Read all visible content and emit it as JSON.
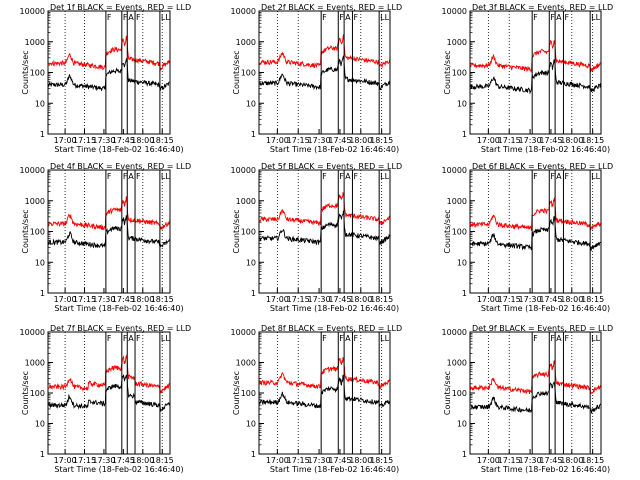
{
  "chart_data": [
    {
      "type": "line",
      "title": "Det 1f BLACK = Events, RED = LLD",
      "xlabel": "Start Time (18-Feb-02 16:46:40)",
      "ylabel": "Counts/sec",
      "yscale": "log",
      "ylim": [
        1,
        10000
      ],
      "xlim": [
        16.78,
        18.35
      ],
      "yticks": [
        "1",
        "10",
        "100",
        "1000",
        "10000"
      ],
      "xticks": [
        "17:00",
        "17:15",
        "17:30",
        "17:45",
        "18:00",
        "18:15"
      ],
      "event_base": 40,
      "lld_base": 200,
      "series": [
        {
          "name": "BLACK",
          "color": "#000000"
        },
        {
          "name": "RED",
          "color": "#ff0000"
        }
      ],
      "markers": [
        {
          "label": "F"
        },
        {
          "label": "F"
        },
        {
          "label": "A"
        },
        {
          "label": "F"
        },
        {
          "label": "LL"
        }
      ]
    },
    {
      "type": "line",
      "title": "Det 2f BLACK = Events, RED = LLD",
      "xlabel": "Start Time (18-Feb-02 16:46:40)",
      "ylabel": "Counts/sec",
      "yscale": "log",
      "ylim": [
        1,
        10000
      ],
      "xlim": [
        16.78,
        18.35
      ],
      "yticks": [
        "1",
        "10",
        "100",
        "1000",
        "10000"
      ],
      "xticks": [
        "17:00",
        "17:15",
        "17:30",
        "17:45",
        "18:00",
        "18:15"
      ],
      "event_base": 45,
      "lld_base": 220,
      "series": [
        {
          "name": "BLACK",
          "color": "#000000"
        },
        {
          "name": "RED",
          "color": "#ff0000"
        }
      ],
      "markers": [
        {
          "label": "F"
        },
        {
          "label": "F"
        },
        {
          "label": "A"
        },
        {
          "label": "F"
        },
        {
          "label": "LL"
        }
      ]
    },
    {
      "type": "line",
      "title": "Det 3f BLACK = Events, RED = LLD",
      "xlabel": "Start Time (18-Feb-02 16:46:40)",
      "ylabel": "Counts/sec",
      "yscale": "log",
      "ylim": [
        1,
        10000
      ],
      "xlim": [
        16.78,
        18.35
      ],
      "yticks": [
        "1",
        "10",
        "100",
        "1000",
        "10000"
      ],
      "xticks": [
        "17:00",
        "17:15",
        "17:30",
        "17:45",
        "18:00",
        "18:15"
      ],
      "event_base": 35,
      "lld_base": 170,
      "series": [
        {
          "name": "BLACK",
          "color": "#000000"
        },
        {
          "name": "RED",
          "color": "#ff0000"
        }
      ],
      "markers": [
        {
          "label": "F"
        },
        {
          "label": "F"
        },
        {
          "label": "A"
        },
        {
          "label": "F"
        },
        {
          "label": "LL"
        }
      ]
    },
    {
      "type": "line",
      "title": "Det 4f BLACK = Events, RED = LLD",
      "xlabel": "Start Time (18-Feb-02 16:46:40)",
      "ylabel": "Counts/sec",
      "yscale": "log",
      "ylim": [
        1,
        10000
      ],
      "xlim": [
        16.78,
        18.35
      ],
      "yticks": [
        "1",
        "10",
        "100",
        "1000",
        "10000"
      ],
      "xticks": [
        "17:00",
        "17:15",
        "17:30",
        "17:45",
        "18:00",
        "18:15"
      ],
      "event_base": 45,
      "lld_base": 180,
      "series": [
        {
          "name": "BLACK",
          "color": "#000000"
        },
        {
          "name": "RED",
          "color": "#ff0000"
        }
      ],
      "markers": [
        {
          "label": "F"
        },
        {
          "label": "F"
        },
        {
          "label": "A"
        },
        {
          "label": "F"
        },
        {
          "label": "LL"
        }
      ]
    },
    {
      "type": "line",
      "title": "Det 5f BLACK = Events, RED = LLD",
      "xlabel": "Start Time (18-Feb-02 16:46:40)",
      "ylabel": "Counts/sec",
      "yscale": "log",
      "ylim": [
        1,
        10000
      ],
      "xlim": [
        16.78,
        18.35
      ],
      "yticks": [
        "1",
        "10",
        "100",
        "1000",
        "10000"
      ],
      "xticks": [
        "17:00",
        "17:15",
        "17:30",
        "17:45",
        "18:00",
        "18:15"
      ],
      "event_base": 60,
      "lld_base": 250,
      "series": [
        {
          "name": "BLACK",
          "color": "#000000"
        },
        {
          "name": "RED",
          "color": "#ff0000"
        }
      ],
      "markers": [
        {
          "label": "F"
        },
        {
          "label": "F"
        },
        {
          "label": "A"
        },
        {
          "label": "F"
        },
        {
          "label": "LL"
        }
      ]
    },
    {
      "type": "line",
      "title": "Det 6f BLACK = Events, RED = LLD",
      "xlabel": "Start Time (18-Feb-02 16:46:40)",
      "ylabel": "Counts/sec",
      "yscale": "log",
      "ylim": [
        1,
        10000
      ],
      "xlim": [
        16.78,
        18.35
      ],
      "yticks": [
        "1",
        "10",
        "100",
        "1000",
        "10000"
      ],
      "xticks": [
        "17:00",
        "17:15",
        "17:30",
        "17:45",
        "18:00",
        "18:15"
      ],
      "event_base": 40,
      "lld_base": 170,
      "series": [
        {
          "name": "BLACK",
          "color": "#000000"
        },
        {
          "name": "RED",
          "color": "#ff0000"
        }
      ],
      "markers": [
        {
          "label": "F"
        },
        {
          "label": "F"
        },
        {
          "label": "A"
        },
        {
          "label": "F"
        },
        {
          "label": "LL"
        }
      ]
    },
    {
      "type": "line",
      "title": "Det 7f BLACK = Events, RED = LLD",
      "xlabel": "Start Time (18-Feb-02 16:46:40)",
      "ylabel": "Counts/sec",
      "yscale": "log",
      "ylim": [
        1,
        10000
      ],
      "xlim": [
        16.78,
        18.35
      ],
      "yticks": [
        "1",
        "10",
        "100",
        "1000",
        "10000"
      ],
      "xticks": [
        "17:00",
        "17:15",
        "17:30",
        "17:45",
        "18:00",
        "18:15"
      ],
      "event_base": 40,
      "lld_base": 160,
      "series": [
        {
          "name": "BLACK",
          "color": "#000000"
        },
        {
          "name": "RED",
          "color": "#ff0000"
        }
      ],
      "markers": [
        {
          "label": "F"
        },
        {
          "label": "F"
        },
        {
          "label": "A"
        },
        {
          "label": "F"
        },
        {
          "label": "LL"
        }
      ]
    },
    {
      "type": "line",
      "title": "Det 8f BLACK = Events, RED = LLD",
      "xlabel": "Start Time (18-Feb-02 16:46:40)",
      "ylabel": "Counts/sec",
      "yscale": "log",
      "ylim": [
        1,
        10000
      ],
      "xlim": [
        16.78,
        18.35
      ],
      "yticks": [
        "1",
        "10",
        "100",
        "1000",
        "10000"
      ],
      "xticks": [
        "17:00",
        "17:15",
        "17:30",
        "17:45",
        "18:00",
        "18:15"
      ],
      "event_base": 50,
      "lld_base": 220,
      "series": [
        {
          "name": "BLACK",
          "color": "#000000"
        },
        {
          "name": "RED",
          "color": "#ff0000"
        }
      ],
      "markers": [
        {
          "label": "F"
        },
        {
          "label": "F"
        },
        {
          "label": "A"
        },
        {
          "label": "F"
        },
        {
          "label": "LL"
        }
      ]
    },
    {
      "type": "line",
      "title": "Det 9f BLACK = Events, RED = LLD",
      "xlabel": "Start Time (18-Feb-02 16:46:40)",
      "ylabel": "Counts/sec",
      "yscale": "log",
      "ylim": [
        1,
        10000
      ],
      "xlim": [
        16.78,
        18.35
      ],
      "yticks": [
        "1",
        "10",
        "100",
        "1000",
        "10000"
      ],
      "xticks": [
        "17:00",
        "17:15",
        "17:30",
        "17:45",
        "18:00",
        "18:15"
      ],
      "event_base": 35,
      "lld_base": 150,
      "series": [
        {
          "name": "BLACK",
          "color": "#000000"
        },
        {
          "name": "RED",
          "color": "#ff0000"
        }
      ],
      "markers": [
        {
          "label": "F"
        },
        {
          "label": "F"
        },
        {
          "label": "A"
        },
        {
          "label": "F"
        },
        {
          "label": "LL"
        }
      ]
    }
  ]
}
